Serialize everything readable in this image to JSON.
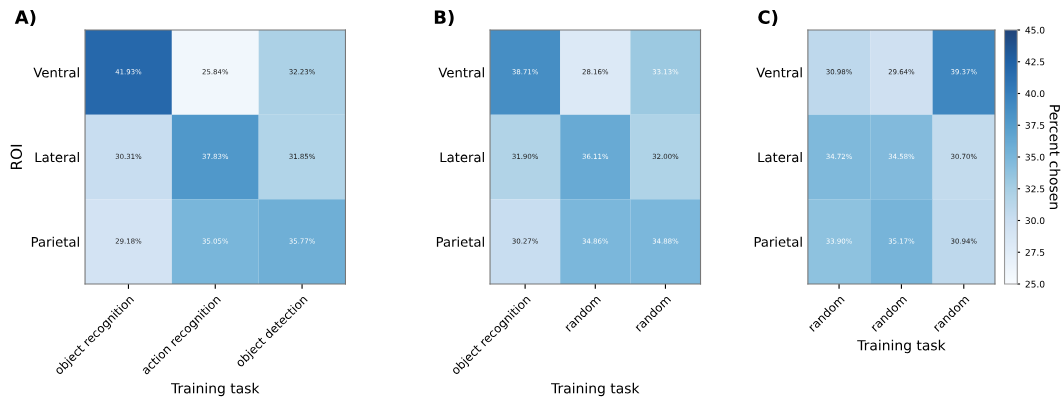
{
  "chart_data": [
    {
      "type": "heatmap",
      "title": "A)",
      "xlabel": "Training task",
      "ylabel": "ROI",
      "categories": [
        "object recognition",
        "action recognition",
        "object detection"
      ],
      "y_categories": [
        "Ventral",
        "Lateral",
        "Parietal"
      ],
      "cells": [
        [
          41.93,
          25.84,
          32.23
        ],
        [
          30.31,
          37.83,
          31.85
        ],
        [
          29.18,
          35.05,
          35.77
        ]
      ],
      "cell_labels": [
        [
          "41.93%",
          "25.84%",
          "32.23%"
        ],
        [
          "30.31%",
          "37.83%",
          "31.85%"
        ],
        [
          "29.18%",
          "35.05%",
          "35.77%"
        ]
      ]
    },
    {
      "type": "heatmap",
      "title": "B)",
      "xlabel": "Training task",
      "categories": [
        "object recognition",
        "random",
        "random"
      ],
      "y_categories": [
        "Ventral",
        "Lateral",
        "Parietal"
      ],
      "cells": [
        [
          38.71,
          28.16,
          33.13
        ],
        [
          31.9,
          36.11,
          32.0
        ],
        [
          30.27,
          34.86,
          34.88
        ]
      ],
      "cell_labels": [
        [
          "38.71%",
          "28.16%",
          "33.13%"
        ],
        [
          "31.90%",
          "36.11%",
          "32.00%"
        ],
        [
          "30.27%",
          "34.86%",
          "34.88%"
        ]
      ]
    },
    {
      "type": "heatmap",
      "title": "C)",
      "xlabel": "Training task",
      "clabel": "Percent chosen",
      "categories": [
        "random",
        "random",
        "random"
      ],
      "y_categories": [
        "Ventral",
        "Lateral",
        "Parietal"
      ],
      "cells": [
        [
          30.98,
          29.64,
          39.37
        ],
        [
          34.72,
          34.58,
          30.7
        ],
        [
          33.9,
          35.17,
          30.94
        ]
      ],
      "cell_labels": [
        [
          "30.98%",
          "29.64%",
          "39.37%"
        ],
        [
          "34.72%",
          "34.58%",
          "30.70%"
        ],
        [
          "33.90%",
          "35.17%",
          "30.94%"
        ]
      ],
      "clim": [
        25,
        45
      ],
      "cticks": [
        {
          "value": 25,
          "label": "25.0"
        },
        {
          "value": 27.5,
          "label": "27.5"
        },
        {
          "value": 30,
          "label": "30.0"
        },
        {
          "value": 32.5,
          "label": "32.5"
        },
        {
          "value": 35,
          "label": "35.0"
        },
        {
          "value": 37.5,
          "label": "37.5"
        },
        {
          "value": 40,
          "label": "40.0"
        },
        {
          "value": 42.5,
          "label": "42.5"
        },
        {
          "value": 45,
          "label": "45.0"
        }
      ]
    }
  ]
}
